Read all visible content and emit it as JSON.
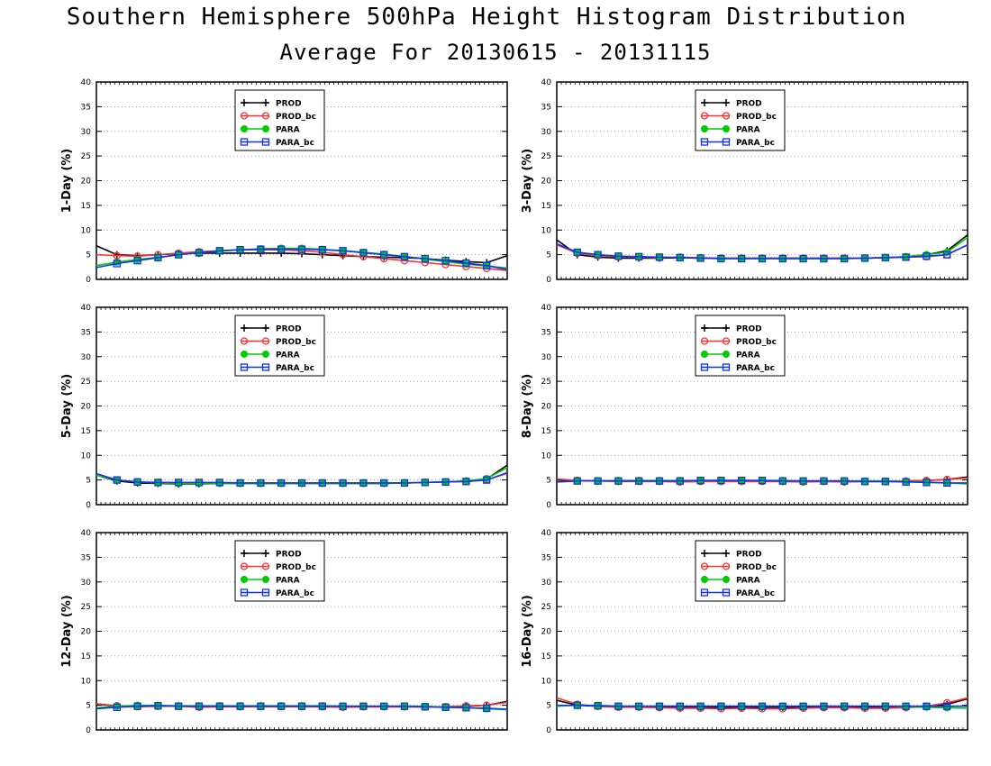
{
  "title": "Southern Hemisphere 500hPa Height Histogram Distribution",
  "subtitle": "Average For 20130615 - 20131115",
  "colors": {
    "PROD": "#000000",
    "PROD_bc": "#ff3030",
    "PARA": "#00cc00",
    "PARA_bc": "#1030ff"
  },
  "chart_data": [
    {
      "type": "line",
      "ylabel": "1-Day (%)",
      "ylim": [
        0,
        40
      ],
      "yticks": [
        0,
        5,
        10,
        15,
        20,
        25,
        30,
        35,
        40
      ],
      "grid": true,
      "legend_placement": "top-center",
      "x": [
        1,
        2,
        3,
        4,
        5,
        6,
        7,
        8,
        9,
        10,
        11,
        12,
        13,
        14,
        15,
        16,
        17,
        18,
        19,
        20,
        21
      ],
      "series": [
        {
          "name": "PROD",
          "marker": "plus",
          "values": [
            6.8,
            5.0,
            4.8,
            5.0,
            5.2,
            5.3,
            5.3,
            5.3,
            5.3,
            5.3,
            5.2,
            5.0,
            4.8,
            4.6,
            4.5,
            4.4,
            4.2,
            3.9,
            3.6,
            3.4,
            4.8
          ]
        },
        {
          "name": "PROD_bc",
          "marker": "circle",
          "values": [
            5.0,
            4.8,
            4.7,
            5.0,
            5.3,
            5.6,
            5.8,
            6.0,
            6.0,
            6.0,
            5.8,
            5.5,
            5.0,
            4.6,
            4.2,
            3.8,
            3.4,
            3.0,
            2.6,
            2.2,
            1.8
          ]
        },
        {
          "name": "PARA",
          "marker": "dot",
          "values": [
            2.8,
            3.5,
            4.0,
            4.5,
            5.0,
            5.4,
            5.7,
            6.0,
            6.2,
            6.3,
            6.3,
            6.1,
            5.8,
            5.5,
            5.1,
            4.6,
            4.1,
            3.6,
            3.1,
            2.7,
            2.3
          ]
        },
        {
          "name": "PARA_bc",
          "marker": "square",
          "values": [
            2.4,
            3.2,
            3.8,
            4.4,
            5.0,
            5.4,
            5.8,
            6.0,
            6.1,
            6.1,
            6.1,
            6.0,
            5.8,
            5.4,
            5.0,
            4.6,
            4.2,
            3.8,
            3.3,
            2.8,
            2.0
          ]
        }
      ]
    },
    {
      "type": "line",
      "ylabel": "3-Day (%)",
      "ylim": [
        0,
        40
      ],
      "yticks": [
        0,
        5,
        10,
        15,
        20,
        25,
        30,
        35,
        40
      ],
      "grid": true,
      "legend_placement": "top-center",
      "x": [
        1,
        2,
        3,
        4,
        5,
        6,
        7,
        8,
        9,
        10,
        11,
        12,
        13,
        14,
        15,
        16,
        17,
        18,
        19,
        20,
        21
      ],
      "series": [
        {
          "name": "PROD",
          "marker": "plus",
          "values": [
            8.0,
            5.0,
            4.5,
            4.3,
            4.3,
            4.3,
            4.4,
            4.3,
            4.3,
            4.3,
            4.3,
            4.3,
            4.3,
            4.3,
            4.3,
            4.3,
            4.4,
            4.6,
            5.0,
            5.8,
            9.0
          ]
        },
        {
          "name": "PROD_bc",
          "marker": "circle",
          "values": [
            7.0,
            5.3,
            4.8,
            4.6,
            4.5,
            4.4,
            4.5,
            4.4,
            4.3,
            4.3,
            4.3,
            4.3,
            4.3,
            4.3,
            4.3,
            4.3,
            4.4,
            4.5,
            4.6,
            5.0,
            7.0
          ]
        },
        {
          "name": "PARA",
          "marker": "dot",
          "values": [
            7.2,
            5.5,
            5.0,
            4.7,
            4.6,
            4.5,
            4.4,
            4.3,
            4.2,
            4.2,
            4.2,
            4.2,
            4.2,
            4.2,
            4.2,
            4.3,
            4.4,
            4.6,
            5.0,
            5.5,
            8.5
          ]
        },
        {
          "name": "PARA_bc",
          "marker": "square",
          "values": [
            7.2,
            5.5,
            5.0,
            4.7,
            4.6,
            4.5,
            4.4,
            4.3,
            4.2,
            4.2,
            4.2,
            4.2,
            4.2,
            4.2,
            4.2,
            4.3,
            4.4,
            4.5,
            4.7,
            5.0,
            7.0
          ]
        }
      ]
    },
    {
      "type": "line",
      "ylabel": "5-Day (%)",
      "ylim": [
        0,
        40
      ],
      "yticks": [
        0,
        5,
        10,
        15,
        20,
        25,
        30,
        35,
        40
      ],
      "grid": true,
      "legend_placement": "top-center",
      "x": [
        1,
        2,
        3,
        4,
        5,
        6,
        7,
        8,
        9,
        10,
        11,
        12,
        13,
        14,
        15,
        16,
        17,
        18,
        19,
        20,
        21
      ],
      "series": [
        {
          "name": "PROD",
          "marker": "plus",
          "values": [
            6.0,
            4.8,
            4.4,
            4.3,
            4.2,
            4.2,
            4.3,
            4.3,
            4.3,
            4.3,
            4.3,
            4.3,
            4.3,
            4.3,
            4.3,
            4.4,
            4.5,
            4.6,
            4.8,
            5.2,
            8.0
          ]
        },
        {
          "name": "PROD_bc",
          "marker": "circle",
          "values": [
            6.2,
            5.0,
            4.6,
            4.5,
            4.4,
            4.4,
            4.4,
            4.4,
            4.4,
            4.4,
            4.4,
            4.4,
            4.4,
            4.4,
            4.4,
            4.4,
            4.5,
            4.6,
            4.7,
            5.0,
            6.5
          ]
        },
        {
          "name": "PARA",
          "marker": "dot",
          "values": [
            6.0,
            5.0,
            4.6,
            4.4,
            4.3,
            4.3,
            4.3,
            4.3,
            4.3,
            4.3,
            4.3,
            4.3,
            4.3,
            4.3,
            4.3,
            4.4,
            4.5,
            4.6,
            4.8,
            5.3,
            7.5
          ]
        },
        {
          "name": "PARA_bc",
          "marker": "square",
          "values": [
            6.3,
            5.0,
            4.6,
            4.5,
            4.5,
            4.5,
            4.5,
            4.4,
            4.4,
            4.4,
            4.4,
            4.4,
            4.4,
            4.4,
            4.4,
            4.4,
            4.5,
            4.6,
            4.7,
            5.0,
            6.4
          ]
        }
      ]
    },
    {
      "type": "line",
      "ylabel": "8-Day (%)",
      "ylim": [
        0,
        40
      ],
      "yticks": [
        0,
        5,
        10,
        15,
        20,
        25,
        30,
        35,
        40
      ],
      "grid": true,
      "legend_placement": "top-center",
      "x": [
        1,
        2,
        3,
        4,
        5,
        6,
        7,
        8,
        9,
        10,
        11,
        12,
        13,
        14,
        15,
        16,
        17,
        18,
        19,
        20,
        21
      ],
      "series": [
        {
          "name": "PROD",
          "marker": "plus",
          "values": [
            5.0,
            4.9,
            4.8,
            4.8,
            4.8,
            4.8,
            4.8,
            4.8,
            4.8,
            4.8,
            4.8,
            4.7,
            4.7,
            4.7,
            4.7,
            4.7,
            4.7,
            4.8,
            4.9,
            5.1,
            5.6
          ]
        },
        {
          "name": "PROD_bc",
          "marker": "circle",
          "values": [
            5.2,
            4.9,
            4.8,
            4.7,
            4.7,
            4.7,
            4.6,
            4.7,
            4.7,
            4.7,
            4.7,
            4.7,
            4.6,
            4.7,
            4.6,
            4.7,
            4.7,
            4.8,
            4.9,
            5.1,
            5.4
          ]
        },
        {
          "name": "PARA",
          "marker": "dot",
          "values": [
            4.6,
            4.8,
            4.8,
            4.9,
            4.9,
            4.9,
            4.9,
            4.9,
            4.9,
            4.9,
            4.9,
            4.9,
            4.8,
            4.8,
            4.8,
            4.8,
            4.8,
            4.7,
            4.6,
            4.4,
            4.2
          ]
        },
        {
          "name": "PARA_bc",
          "marker": "square",
          "values": [
            4.6,
            4.8,
            4.8,
            4.8,
            4.8,
            4.8,
            4.8,
            4.9,
            4.9,
            4.9,
            4.9,
            4.8,
            4.8,
            4.8,
            4.8,
            4.7,
            4.7,
            4.6,
            4.5,
            4.4,
            4.4
          ]
        }
      ]
    },
    {
      "type": "line",
      "ylabel": "12-Day (%)",
      "ylim": [
        0,
        40
      ],
      "yticks": [
        0,
        5,
        10,
        15,
        20,
        25,
        30,
        35,
        40
      ],
      "grid": true,
      "legend_placement": "top-center",
      "x": [
        1,
        2,
        3,
        4,
        5,
        6,
        7,
        8,
        9,
        10,
        11,
        12,
        13,
        14,
        15,
        16,
        17,
        18,
        19,
        20,
        21
      ],
      "series": [
        {
          "name": "PROD",
          "marker": "plus",
          "values": [
            5.2,
            4.9,
            4.8,
            4.8,
            4.8,
            4.8,
            4.8,
            4.8,
            4.8,
            4.8,
            4.8,
            4.7,
            4.7,
            4.7,
            4.7,
            4.7,
            4.7,
            4.7,
            4.8,
            5.0,
            5.8
          ]
        },
        {
          "name": "PROD_bc",
          "marker": "circle",
          "values": [
            5.3,
            4.9,
            4.7,
            4.8,
            4.8,
            4.6,
            4.7,
            4.7,
            4.7,
            4.7,
            4.7,
            4.7,
            4.6,
            4.7,
            4.7,
            4.7,
            4.7,
            4.7,
            4.9,
            5.0,
            5.6
          ]
        },
        {
          "name": "PARA",
          "marker": "dot",
          "values": [
            4.5,
            4.8,
            5.0,
            5.0,
            4.9,
            4.9,
            4.9,
            4.9,
            4.9,
            4.9,
            4.9,
            4.9,
            4.8,
            4.8,
            4.8,
            4.8,
            4.8,
            4.6,
            4.5,
            4.3,
            4.1
          ]
        },
        {
          "name": "PARA_bc",
          "marker": "square",
          "values": [
            4.3,
            4.6,
            4.8,
            4.9,
            4.8,
            4.8,
            4.8,
            4.8,
            4.8,
            4.8,
            4.8,
            4.8,
            4.8,
            4.8,
            4.8,
            4.8,
            4.7,
            4.6,
            4.5,
            4.4,
            4.2
          ]
        }
      ]
    },
    {
      "type": "line",
      "ylabel": "16-Day (%)",
      "ylim": [
        0,
        40
      ],
      "yticks": [
        0,
        5,
        10,
        15,
        20,
        25,
        30,
        35,
        40
      ],
      "grid": true,
      "legend_placement": "top-center",
      "x": [
        1,
        2,
        3,
        4,
        5,
        6,
        7,
        8,
        9,
        10,
        11,
        12,
        13,
        14,
        15,
        16,
        17,
        18,
        19,
        20,
        21
      ],
      "series": [
        {
          "name": "PROD",
          "marker": "plus",
          "values": [
            6.0,
            5.0,
            4.8,
            4.7,
            4.7,
            4.6,
            4.6,
            4.6,
            4.6,
            4.6,
            4.6,
            4.6,
            4.6,
            4.6,
            4.6,
            4.6,
            4.6,
            4.6,
            4.7,
            5.2,
            6.3
          ]
        },
        {
          "name": "PROD_bc",
          "marker": "circle",
          "values": [
            6.5,
            5.2,
            4.8,
            4.6,
            4.6,
            4.5,
            4.4,
            4.4,
            4.3,
            4.4,
            4.3,
            4.3,
            4.4,
            4.5,
            4.5,
            4.4,
            4.4,
            4.5,
            4.8,
            5.5,
            6.5
          ]
        },
        {
          "name": "PARA",
          "marker": "dot",
          "values": [
            4.8,
            5.0,
            5.0,
            4.8,
            4.8,
            4.8,
            4.8,
            4.8,
            4.8,
            4.8,
            4.8,
            4.8,
            4.8,
            4.8,
            4.8,
            4.8,
            4.8,
            4.7,
            4.6,
            4.5,
            4.4
          ]
        },
        {
          "name": "PARA_bc",
          "marker": "square",
          "values": [
            5.0,
            5.0,
            4.9,
            4.8,
            4.8,
            4.8,
            4.8,
            4.8,
            4.8,
            4.8,
            4.8,
            4.8,
            4.8,
            4.8,
            4.8,
            4.8,
            4.8,
            4.8,
            4.8,
            4.8,
            4.8
          ]
        }
      ]
    }
  ]
}
